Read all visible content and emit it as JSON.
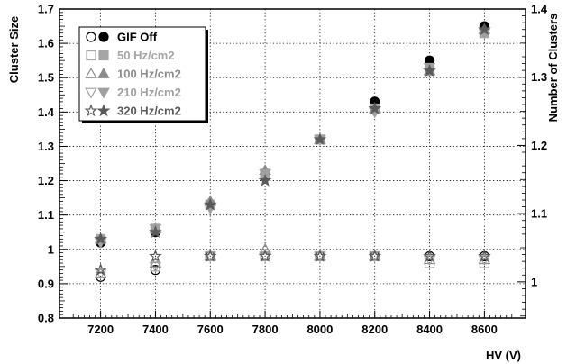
{
  "chart_data": {
    "type": "scatter",
    "title": "",
    "xlabel": "HV (V)",
    "ylabel": "Cluster Size",
    "y2label": "Number of Clusters",
    "xlim": [
      7050,
      8750
    ],
    "ylim": [
      0.8,
      1.7
    ],
    "y2lim": [
      0.947,
      1.4
    ],
    "x_ticks": [
      7200,
      7400,
      7600,
      7800,
      8000,
      8200,
      8400,
      8600
    ],
    "x_tick_labels": [
      "7200",
      "7400",
      "7600",
      "7800",
      "8000",
      "8200",
      "8400",
      "8600"
    ],
    "y_ticks": [
      0.8,
      0.9,
      1.0,
      1.1,
      1.2,
      1.3,
      1.4,
      1.5,
      1.6,
      1.7
    ],
    "y_tick_labels": [
      "0.8",
      "0.9",
      "1",
      "1.1",
      "1.2",
      "1.3",
      "1.4",
      "1.5",
      "1.6",
      "1.7"
    ],
    "y2_ticks": [
      1.0,
      1.1,
      1.2,
      1.3,
      1.4
    ],
    "y2_tick_labels": [
      "1",
      "1.1",
      "1.2",
      "1.3",
      "1.4"
    ],
    "grid": true,
    "grid_style": "dotted",
    "legend_position": "top-left",
    "x": [
      7200,
      7400,
      7600,
      7800,
      8000,
      8200,
      8400,
      8600
    ],
    "series": [
      {
        "name": "GIF Off",
        "color": "#000000",
        "marker": "circle",
        "number_of_clusters_open": [
          0.92,
          0.94,
          0.98,
          0.98,
          0.98,
          0.98,
          0.98,
          0.98
        ],
        "cluster_size_filled": [
          1.02,
          1.05,
          1.13,
          1.21,
          1.32,
          1.43,
          1.55,
          1.65
        ]
      },
      {
        "name": "50 Hz/cm2",
        "color": "#a6a6a6",
        "marker": "square",
        "number_of_clusters_open": [
          0.93,
          0.95,
          0.98,
          0.98,
          0.98,
          0.98,
          0.96,
          0.96
        ],
        "cluster_size_filled": [
          1.03,
          1.06,
          1.13,
          1.22,
          1.32,
          1.41,
          1.52,
          1.63
        ]
      },
      {
        "name": "100 Hz/cm2",
        "color": "#8c8c8c",
        "marker": "triangle-up",
        "number_of_clusters_open": [
          0.93,
          0.96,
          0.98,
          1.0,
          0.98,
          0.98,
          0.97,
          0.97
        ],
        "cluster_size_filled": [
          1.03,
          1.06,
          1.14,
          1.23,
          1.32,
          1.41,
          1.52,
          1.64
        ]
      },
      {
        "name": "210 Hz/cm2",
        "color": "#a0a0a0",
        "marker": "triangle-down",
        "number_of_clusters_open": [
          0.93,
          0.95,
          0.98,
          0.98,
          0.98,
          0.98,
          0.97,
          0.97
        ],
        "cluster_size_filled": [
          1.02,
          1.06,
          1.12,
          1.22,
          1.32,
          1.4,
          1.53,
          1.63
        ]
      },
      {
        "name": "320 Hz/cm2",
        "color": "#5a5a5a",
        "marker": "star",
        "number_of_clusters_open": [
          0.94,
          0.98,
          0.98,
          0.98,
          0.98,
          0.98,
          0.98,
          0.98
        ],
        "cluster_size_filled": [
          1.03,
          1.05,
          1.13,
          1.2,
          1.32,
          1.41,
          1.52,
          1.64
        ]
      }
    ]
  }
}
